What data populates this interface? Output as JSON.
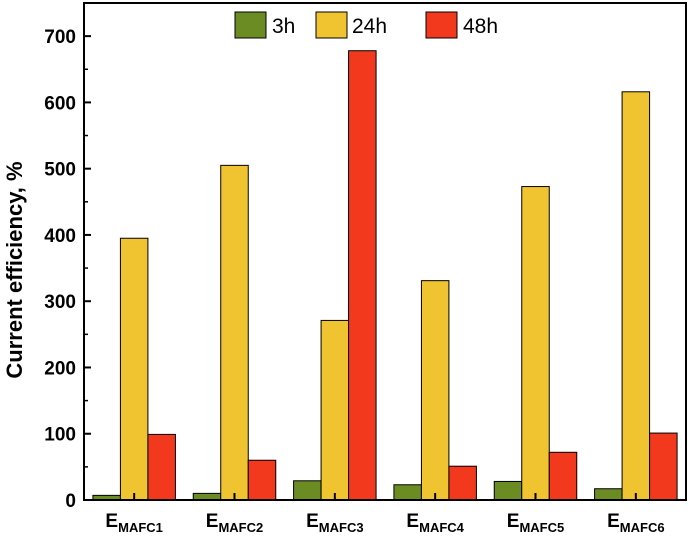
{
  "chart_data": {
    "type": "bar",
    "categories": [
      {
        "main": "E",
        "sub": "MAFC1"
      },
      {
        "main": "E",
        "sub": "MAFC2"
      },
      {
        "main": "E",
        "sub": "MAFC3"
      },
      {
        "main": "E",
        "sub": "MAFC4"
      },
      {
        "main": "E",
        "sub": "MAFC5"
      },
      {
        "main": "E",
        "sub": "MAFC6"
      }
    ],
    "series": [
      {
        "name": "3h",
        "color": "#6b8c23",
        "values": [
          7,
          10,
          29,
          23,
          28,
          17
        ]
      },
      {
        "name": "24h",
        "color": "#f0c430",
        "values": [
          395,
          505,
          271,
          331,
          473,
          616
        ]
      },
      {
        "name": "48h",
        "color": "#f2391e",
        "values": [
          99,
          60,
          678,
          51,
          72,
          101
        ]
      }
    ],
    "ylabel": "Current efficiency, %",
    "xlabel": "",
    "ylim": [
      0,
      750
    ],
    "yticks": [
      0,
      100,
      200,
      300,
      400,
      500,
      600,
      700
    ],
    "legend": "top-center",
    "grid": false
  }
}
